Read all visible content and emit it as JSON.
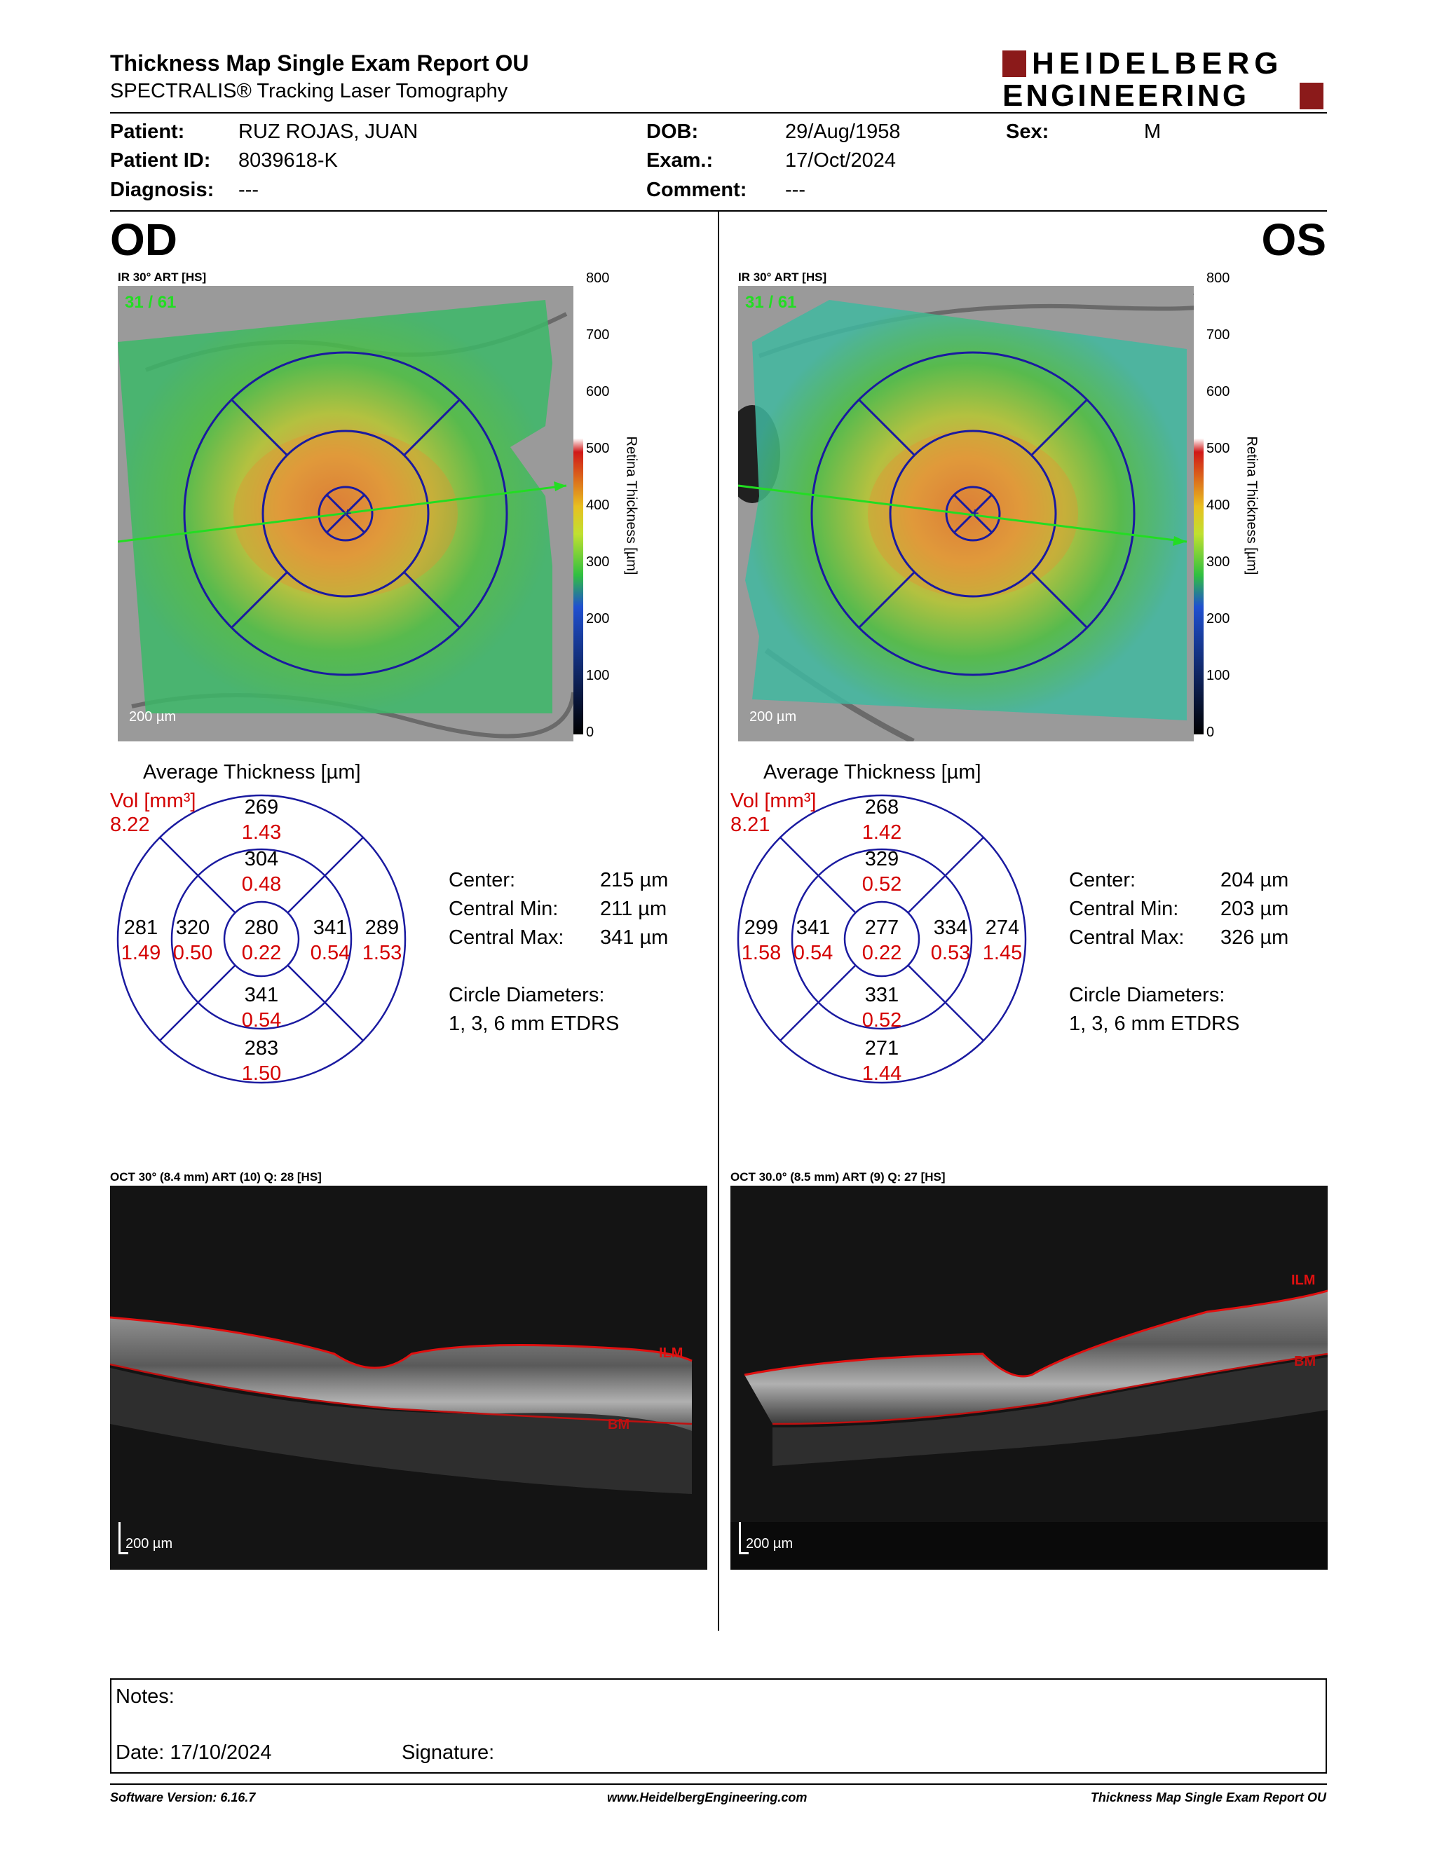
{
  "header": {
    "title": "Thickness Map Single Exam Report OU",
    "subtitle": "SPECTRALIS® Tracking Laser Tomography",
    "logo_line1": "HEIDELBERG",
    "logo_line2": "ENGINEERING"
  },
  "patient": {
    "patient_label": "Patient:",
    "patient_value": "RUZ ROJAS, JUAN",
    "id_label": "Patient ID:",
    "id_value": "8039618-K",
    "diagnosis_label": "Diagnosis:",
    "diagnosis_value": "---",
    "dob_label": "DOB:",
    "dob_value": "29/Aug/1958",
    "exam_label": "Exam.:",
    "exam_value": "17/Oct/2024",
    "comment_label": "Comment:",
    "comment_value": "---",
    "sex_label": "Sex:",
    "sex_value": "M"
  },
  "colorbar": {
    "ticks": [
      "800",
      "700",
      "600",
      "500",
      "400",
      "300",
      "200",
      "100",
      "0"
    ],
    "label": "Retina Thickness [µm]"
  },
  "od": {
    "eye": "OD",
    "fundus_caption": "IR 30° ART [HS]",
    "frame": "31 / 61",
    "scale": "200 µm",
    "avg_title": "Average Thickness [µm]",
    "vol_label": "Vol [mm³]",
    "vol_value": "8.22",
    "sectors": {
      "outer_superior": {
        "t": "269",
        "v": "1.43"
      },
      "inner_superior": {
        "t": "304",
        "v": "0.48"
      },
      "outer_left": {
        "t": "281",
        "v": "1.49"
      },
      "inner_left": {
        "t": "320",
        "v": "0.50"
      },
      "center": {
        "t": "280",
        "v": "0.22"
      },
      "inner_right": {
        "t": "341",
        "v": "0.54"
      },
      "outer_right": {
        "t": "289",
        "v": "1.53"
      },
      "inner_inferior": {
        "t": "341",
        "v": "0.54"
      },
      "outer_inferior": {
        "t": "283",
        "v": "1.50"
      }
    },
    "center_label": "Center:",
    "center_value": "215 µm",
    "cmin_label": "Central Min:",
    "cmin_value": "211 µm",
    "cmax_label": "Central Max:",
    "cmax_value": "341 µm",
    "circ_label": "Circle Diameters:",
    "circ_value": "1, 3, 6 mm ETDRS",
    "oct_caption": "OCT 30° (8.4 mm) ART (10) Q: 28 [HS]",
    "ilm": "ILM",
    "bm": "BM",
    "oct_scale": "200 µm"
  },
  "os": {
    "eye": "OS",
    "fundus_caption": "IR 30° ART [HS]",
    "frame": "31 / 61",
    "scale": "200 µm",
    "avg_title": "Average Thickness [µm]",
    "vol_label": "Vol [mm³]",
    "vol_value": "8.21",
    "sectors": {
      "outer_superior": {
        "t": "268",
        "v": "1.42"
      },
      "inner_superior": {
        "t": "329",
        "v": "0.52"
      },
      "outer_left": {
        "t": "299",
        "v": "1.58"
      },
      "inner_left": {
        "t": "341",
        "v": "0.54"
      },
      "center": {
        "t": "277",
        "v": "0.22"
      },
      "inner_right": {
        "t": "334",
        "v": "0.53"
      },
      "outer_right": {
        "t": "274",
        "v": "1.45"
      },
      "inner_inferior": {
        "t": "331",
        "v": "0.52"
      },
      "outer_inferior": {
        "t": "271",
        "v": "1.44"
      }
    },
    "center_label": "Center:",
    "center_value": "204 µm",
    "cmin_label": "Central Min:",
    "cmin_value": "203 µm",
    "cmax_label": "Central Max:",
    "cmax_value": "326 µm",
    "circ_label": "Circle Diameters:",
    "circ_value": "1, 3, 6 mm ETDRS",
    "oct_caption": "OCT 30.0° (8.5 mm) ART (9) Q: 27 [HS]",
    "ilm": "ILM",
    "bm": "BM",
    "oct_scale": "200 µm"
  },
  "notes": {
    "notes_label": "Notes:",
    "date_label": "Date: 17/10/2024",
    "signature_label": "Signature:"
  },
  "footer": {
    "software": "Software Version: 6.16.7",
    "website": "www.HeidelbergEngineering.com",
    "report": "Thickness Map Single Exam Report OU"
  },
  "colors": {
    "accent_red": "#d40000",
    "logo_red": "#8b1a1a",
    "etdrs_blue": "#1a1aa0",
    "scan_line": "#22dd22",
    "ilm_line": "#e01010"
  }
}
